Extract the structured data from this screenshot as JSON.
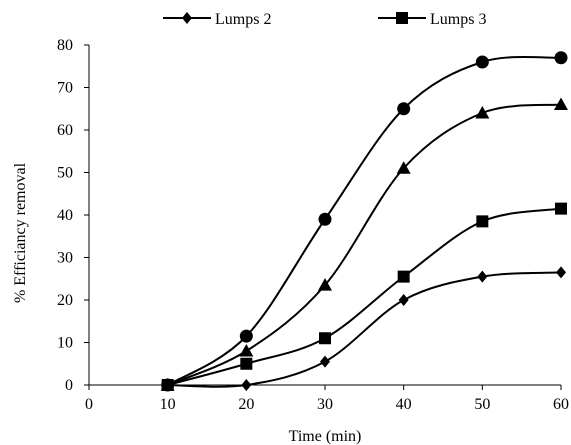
{
  "chart_data": {
    "type": "line",
    "xlabel": "Time (min)",
    "ylabel": "% Efficiancy removal",
    "xlim": [
      0,
      60
    ],
    "ylim": [
      0,
      80
    ],
    "xticks": [
      0,
      10,
      20,
      30,
      40,
      50,
      60
    ],
    "yticks": [
      0,
      10,
      20,
      30,
      40,
      50,
      60,
      70,
      80
    ],
    "grid": false,
    "legend_position": "top",
    "x": [
      10,
      20,
      30,
      40,
      50,
      60
    ],
    "series": [
      {
        "name": "Lumps 2",
        "marker": "diamond",
        "values": [
          0,
          0,
          5.5,
          20,
          25.5,
          26.5
        ]
      },
      {
        "name": "Lumps 3",
        "marker": "square",
        "values": [
          0,
          5,
          11,
          25.5,
          38.5,
          41.5
        ]
      },
      {
        "marker": "triangle",
        "values": [
          0,
          8,
          23.5,
          51,
          64,
          66
        ]
      },
      {
        "marker": "circle",
        "values": [
          0,
          11.5,
          39,
          65,
          76,
          77
        ]
      }
    ],
    "color": "#000000"
  }
}
